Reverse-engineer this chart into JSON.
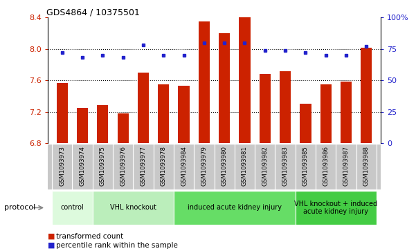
{
  "title": "GDS4864 / 10375501",
  "samples": [
    "GSM1093973",
    "GSM1093974",
    "GSM1093975",
    "GSM1093976",
    "GSM1093977",
    "GSM1093978",
    "GSM1093984",
    "GSM1093979",
    "GSM1093980",
    "GSM1093981",
    "GSM1093982",
    "GSM1093983",
    "GSM1093985",
    "GSM1093986",
    "GSM1093987",
    "GSM1093988"
  ],
  "bar_values": [
    7.57,
    7.25,
    7.28,
    7.18,
    7.7,
    7.55,
    7.53,
    8.35,
    8.2,
    8.4,
    7.68,
    7.72,
    7.3,
    7.55,
    7.58,
    8.02
  ],
  "dot_values": [
    72,
    68,
    70,
    68,
    78,
    70,
    70,
    80,
    80,
    80,
    74,
    74,
    72,
    70,
    70,
    77
  ],
  "bar_color": "#CC2200",
  "dot_color": "#2222CC",
  "ylim_left": [
    6.8,
    8.4
  ],
  "ylim_right": [
    0,
    100
  ],
  "yticks_left": [
    6.8,
    7.2,
    7.6,
    8.0,
    8.4
  ],
  "yticks_right": [
    0,
    25,
    50,
    75,
    100
  ],
  "ytick_labels_right": [
    "0",
    "25",
    "50",
    "75",
    "100%"
  ],
  "grid_values": [
    8.0,
    7.6,
    7.2
  ],
  "group_defs": [
    {
      "label": "control",
      "start": 0,
      "end": 1,
      "color": "#DDFADD"
    },
    {
      "label": "VHL knockout",
      "start": 2,
      "end": 5,
      "color": "#BBEEBB"
    },
    {
      "label": "induced acute kidney injury",
      "start": 6,
      "end": 11,
      "color": "#66DD66"
    },
    {
      "label": "VHL knockout + induced\nacute kidney injury",
      "start": 12,
      "end": 15,
      "color": "#44CC44"
    }
  ],
  "legend_items": [
    {
      "label": "transformed count",
      "color": "#CC2200"
    },
    {
      "label": "percentile rank within the sample",
      "color": "#2222CC"
    }
  ],
  "tick_label_color_left": "#CC2200",
  "tick_label_color_right": "#2222CC",
  "xtick_bg_color": "#C8C8C8",
  "xtick_sep_color": "#AAAAAA"
}
